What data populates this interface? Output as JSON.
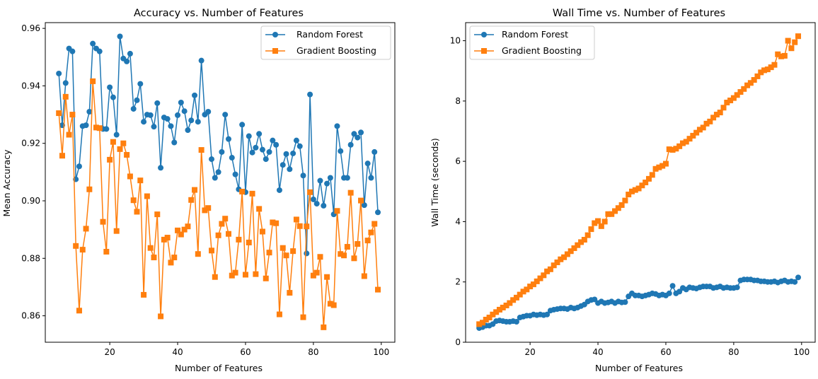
{
  "colors": {
    "series0": "#1f77b4",
    "series1": "#ff7f0e"
  },
  "chart_data": [
    {
      "type": "line",
      "title": "Accuracy vs. Number of Features",
      "xlabel": "Number of Features",
      "ylabel": "Mean Accuracy",
      "xlim": [
        1,
        104
      ],
      "ylim": [
        0.8508,
        0.962
      ],
      "xticks": [
        20,
        40,
        60,
        80,
        100
      ],
      "yticks": [
        0.86,
        0.88,
        0.9,
        0.92,
        0.94,
        0.96
      ],
      "ytick_labels": [
        "0.86",
        "0.88",
        "0.90",
        "0.92",
        "0.94",
        "0.96"
      ],
      "legend_position": "top-right",
      "x": [
        5,
        6,
        7,
        8,
        9,
        10,
        11,
        12,
        13,
        14,
        15,
        16,
        17,
        18,
        19,
        20,
        21,
        22,
        23,
        24,
        25,
        26,
        27,
        28,
        29,
        30,
        31,
        32,
        33,
        34,
        35,
        36,
        37,
        38,
        39,
        40,
        41,
        42,
        43,
        44,
        45,
        46,
        47,
        48,
        49,
        50,
        51,
        52,
        53,
        54,
        55,
        56,
        57,
        58,
        59,
        60,
        61,
        62,
        63,
        64,
        65,
        66,
        67,
        68,
        69,
        70,
        71,
        72,
        73,
        74,
        75,
        76,
        77,
        78,
        79,
        80,
        81,
        82,
        83,
        84,
        85,
        86,
        87,
        88,
        89,
        90,
        91,
        92,
        93,
        94,
        95,
        96,
        97,
        98,
        99
      ],
      "series": [
        {
          "name": "Random Forest",
          "marker": "circle",
          "values": [
            0.9443,
            0.9263,
            0.941,
            0.953,
            0.952,
            0.9075,
            0.912,
            0.926,
            0.9263,
            0.931,
            0.9547,
            0.953,
            0.952,
            0.925,
            0.925,
            0.9395,
            0.936,
            0.923,
            0.9572,
            0.9495,
            0.9485,
            0.9512,
            0.932,
            0.935,
            0.9407,
            0.9275,
            0.93,
            0.9298,
            0.9258,
            0.934,
            0.9115,
            0.929,
            0.9285,
            0.926,
            0.9203,
            0.9298,
            0.9342,
            0.9312,
            0.9246,
            0.928,
            0.9367,
            0.9275,
            0.9488,
            0.93,
            0.931,
            0.9145,
            0.908,
            0.91,
            0.917,
            0.93,
            0.9215,
            0.915,
            0.9092,
            0.904,
            0.9265,
            0.903,
            0.9225,
            0.9168,
            0.9185,
            0.9233,
            0.9178,
            0.9145,
            0.917,
            0.921,
            0.9195,
            0.9037,
            0.9125,
            0.9163,
            0.911,
            0.9165,
            0.921,
            0.919,
            0.9088,
            0.8817,
            0.937,
            0.9005,
            0.899,
            0.907,
            0.8983,
            0.906,
            0.908,
            0.8953,
            0.926,
            0.9173,
            0.908,
            0.908,
            0.9195,
            0.9233,
            0.922,
            0.9238,
            0.8985,
            0.913,
            0.908,
            0.917,
            0.896
          ]
        },
        {
          "name": "Gradient Boosting",
          "marker": "square",
          "values": [
            0.9305,
            0.9157,
            0.9362,
            0.923,
            0.93,
            0.8843,
            0.8618,
            0.883,
            0.8903,
            0.904,
            0.9416,
            0.9255,
            0.9253,
            0.8927,
            0.8823,
            0.9143,
            0.9205,
            0.8895,
            0.918,
            0.92,
            0.916,
            0.9085,
            0.9002,
            0.8962,
            0.9071,
            0.8673,
            0.9016,
            0.8836,
            0.8803,
            0.8953,
            0.8598,
            0.8865,
            0.8872,
            0.8785,
            0.8803,
            0.8897,
            0.8883,
            0.89,
            0.8911,
            0.9003,
            0.9038,
            0.8815,
            0.9177,
            0.8967,
            0.8975,
            0.8827,
            0.8735,
            0.888,
            0.892,
            0.8938,
            0.8885,
            0.874,
            0.875,
            0.8865,
            0.9032,
            0.8743,
            0.8855,
            0.9025,
            0.8745,
            0.8972,
            0.8893,
            0.873,
            0.882,
            0.8925,
            0.8922,
            0.8605,
            0.8836,
            0.881,
            0.868,
            0.8825,
            0.8935,
            0.8912,
            0.8595,
            0.8911,
            0.903,
            0.874,
            0.875,
            0.8805,
            0.856,
            0.8735,
            0.8642,
            0.8637,
            0.8965,
            0.8815,
            0.881,
            0.884,
            0.9028,
            0.88,
            0.885,
            0.9001,
            0.8738,
            0.8862,
            0.889,
            0.892,
            0.8691
          ]
        }
      ]
    },
    {
      "type": "line",
      "title": "Wall Time vs. Number of Features",
      "xlabel": "Number of Features",
      "ylabel": "Wall Time (seconds)",
      "xlim": [
        1,
        104
      ],
      "ylim": [
        0,
        10.6
      ],
      "xticks": [
        20,
        40,
        60,
        80,
        100
      ],
      "yticks": [
        0,
        2,
        4,
        6,
        8,
        10
      ],
      "ytick_labels": [
        "0",
        "2",
        "4",
        "6",
        "8",
        "10"
      ],
      "legend_position": "top-left",
      "x": [
        5,
        6,
        7,
        8,
        9,
        10,
        11,
        12,
        13,
        14,
        15,
        16,
        17,
        18,
        19,
        20,
        21,
        22,
        23,
        24,
        25,
        26,
        27,
        28,
        29,
        30,
        31,
        32,
        33,
        34,
        35,
        36,
        37,
        38,
        39,
        40,
        41,
        42,
        43,
        44,
        45,
        46,
        47,
        48,
        49,
        50,
        51,
        52,
        53,
        54,
        55,
        56,
        57,
        58,
        59,
        60,
        61,
        62,
        63,
        64,
        65,
        66,
        67,
        68,
        69,
        70,
        71,
        72,
        73,
        74,
        75,
        76,
        77,
        78,
        79,
        80,
        81,
        82,
        83,
        84,
        85,
        86,
        87,
        88,
        89,
        90,
        91,
        92,
        93,
        94,
        95,
        96,
        97,
        98,
        99
      ],
      "series": [
        {
          "name": "Random Forest",
          "marker": "circle",
          "values": [
            0.47,
            0.5,
            0.55,
            0.55,
            0.6,
            0.7,
            0.72,
            0.7,
            0.68,
            0.68,
            0.7,
            0.68,
            0.82,
            0.85,
            0.88,
            0.88,
            0.92,
            0.9,
            0.92,
            0.9,
            0.92,
            1.05,
            1.08,
            1.1,
            1.12,
            1.12,
            1.1,
            1.15,
            1.12,
            1.15,
            1.2,
            1.25,
            1.35,
            1.4,
            1.42,
            1.3,
            1.35,
            1.3,
            1.32,
            1.35,
            1.3,
            1.35,
            1.32,
            1.33,
            1.52,
            1.62,
            1.55,
            1.55,
            1.52,
            1.55,
            1.58,
            1.62,
            1.6,
            1.55,
            1.58,
            1.55,
            1.62,
            1.87,
            1.62,
            1.68,
            1.8,
            1.75,
            1.82,
            1.8,
            1.78,
            1.82,
            1.85,
            1.85,
            1.85,
            1.8,
            1.82,
            1.85,
            1.8,
            1.82,
            1.8,
            1.8,
            1.82,
            2.05,
            2.08,
            2.08,
            2.08,
            2.05,
            2.05,
            2.02,
            2.02,
            2.0,
            2.0,
            2.02,
            1.98,
            2.02,
            2.05,
            2.0,
            2.02,
            2.0,
            2.15
          ]
        },
        {
          "name": "Gradient Boosting",
          "marker": "square",
          "values": [
            0.6,
            0.65,
            0.75,
            0.82,
            0.92,
            1.0,
            1.08,
            1.15,
            1.22,
            1.3,
            1.4,
            1.48,
            1.58,
            1.68,
            1.75,
            1.85,
            1.92,
            2.02,
            2.12,
            2.22,
            2.35,
            2.42,
            2.55,
            2.65,
            2.75,
            2.82,
            2.92,
            3.02,
            3.12,
            3.22,
            3.32,
            3.4,
            3.55,
            3.75,
            3.95,
            4.02,
            3.85,
            4.0,
            4.25,
            4.25,
            4.35,
            4.45,
            4.55,
            4.7,
            4.9,
            5.0,
            5.05,
            5.1,
            5.2,
            5.3,
            5.42,
            5.55,
            5.75,
            5.8,
            5.85,
            5.92,
            6.4,
            6.38,
            6.42,
            6.5,
            6.6,
            6.65,
            6.75,
            6.85,
            6.95,
            7.05,
            7.12,
            7.25,
            7.32,
            7.45,
            7.55,
            7.62,
            7.78,
            7.95,
            8.02,
            8.1,
            8.2,
            8.3,
            8.4,
            8.52,
            8.6,
            8.7,
            8.82,
            8.95,
            9.02,
            9.05,
            9.12,
            9.2,
            9.55,
            9.48,
            9.5,
            10.0,
            9.75,
            9.95,
            10.15
          ]
        }
      ]
    }
  ]
}
